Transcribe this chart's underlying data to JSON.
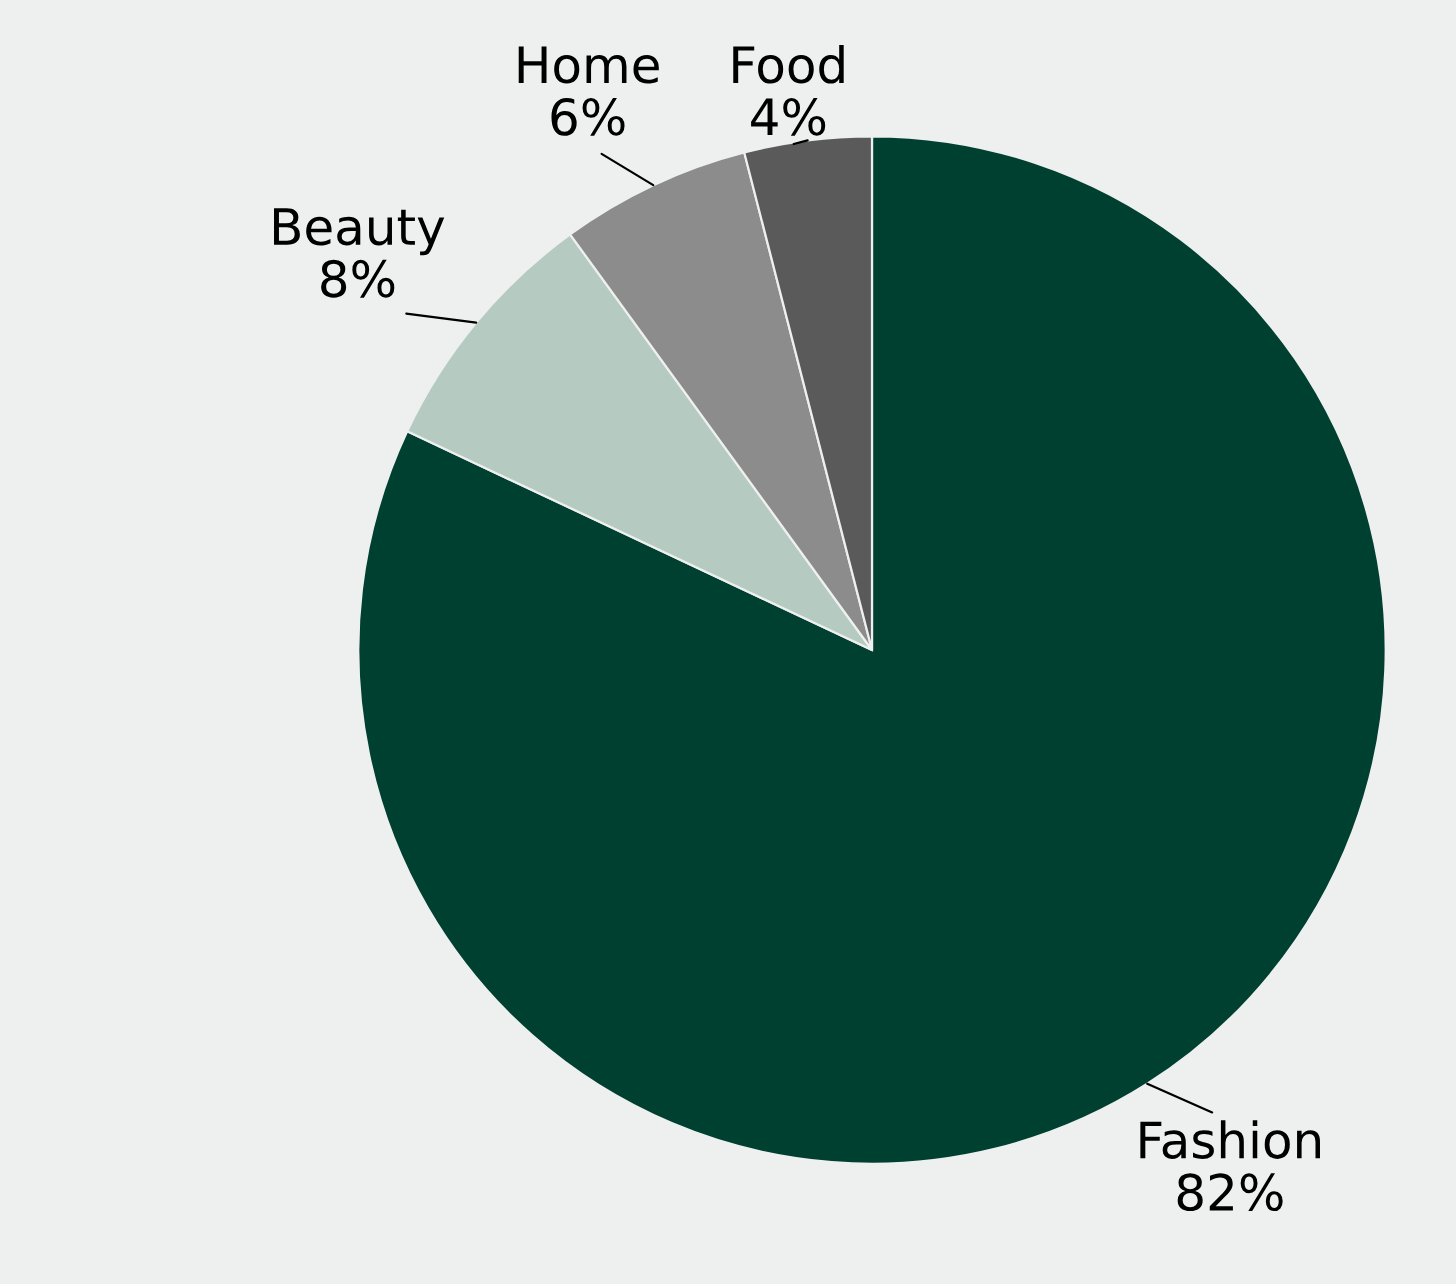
{
  "chart_data": {
    "type": "pie",
    "categories": [
      "Fashion",
      "Beauty",
      "Home",
      "Food"
    ],
    "values": [
      82,
      8,
      6,
      4
    ],
    "colors": [
      "#004030",
      "#b5cbc2",
      "#8c8c8c",
      "#5a5a5a"
    ],
    "value_labels": [
      "82%",
      "8%",
      "6%",
      "4%"
    ]
  }
}
